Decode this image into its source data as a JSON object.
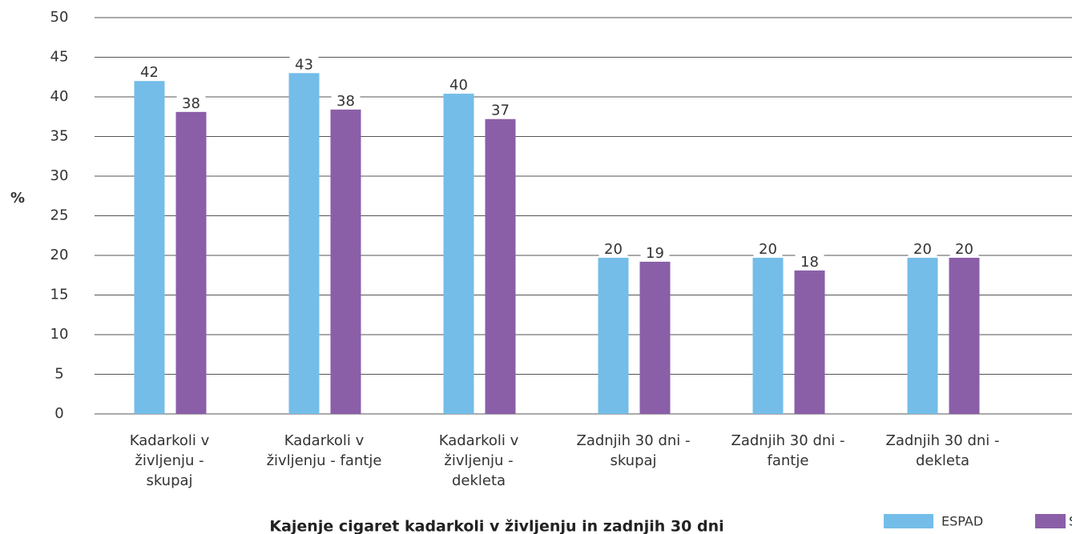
{
  "chart_data": {
    "type": "bar",
    "title": "Kajenje cigaret kadarkoli v življenju in zadnjih 30 dni",
    "y_label": "%",
    "categories": [
      "Kadarkoli v življenju - skupaj",
      "Kadarkoli v življenju - fantje",
      "Kadarkoli v življenju - dekleta",
      "Zadnjih 30 dni - skupaj",
      "Zadnjih 30 dni - fantje",
      "Zadnjih 30 dni - dekleta"
    ],
    "series": [
      {
        "name": "ESPAD",
        "color": "#74bde8",
        "values": [
          42.0,
          43.0,
          40.4,
          19.7,
          19.7,
          19.7
        ],
        "value_labels": [
          "42",
          "43",
          "40",
          "20",
          "20",
          "20"
        ]
      },
      {
        "name": "SI",
        "color": "#8a5fa8",
        "values": [
          38.1,
          38.4,
          37.2,
          19.2,
          18.1,
          19.7
        ],
        "value_labels": [
          "38",
          "38",
          "37",
          "19",
          "18",
          "20"
        ]
      }
    ],
    "ylim": [
      0,
      50
    ],
    "yticks": [
      0,
      5,
      10,
      15,
      20,
      25,
      30,
      35,
      40,
      45,
      50
    ],
    "grid": true
  }
}
